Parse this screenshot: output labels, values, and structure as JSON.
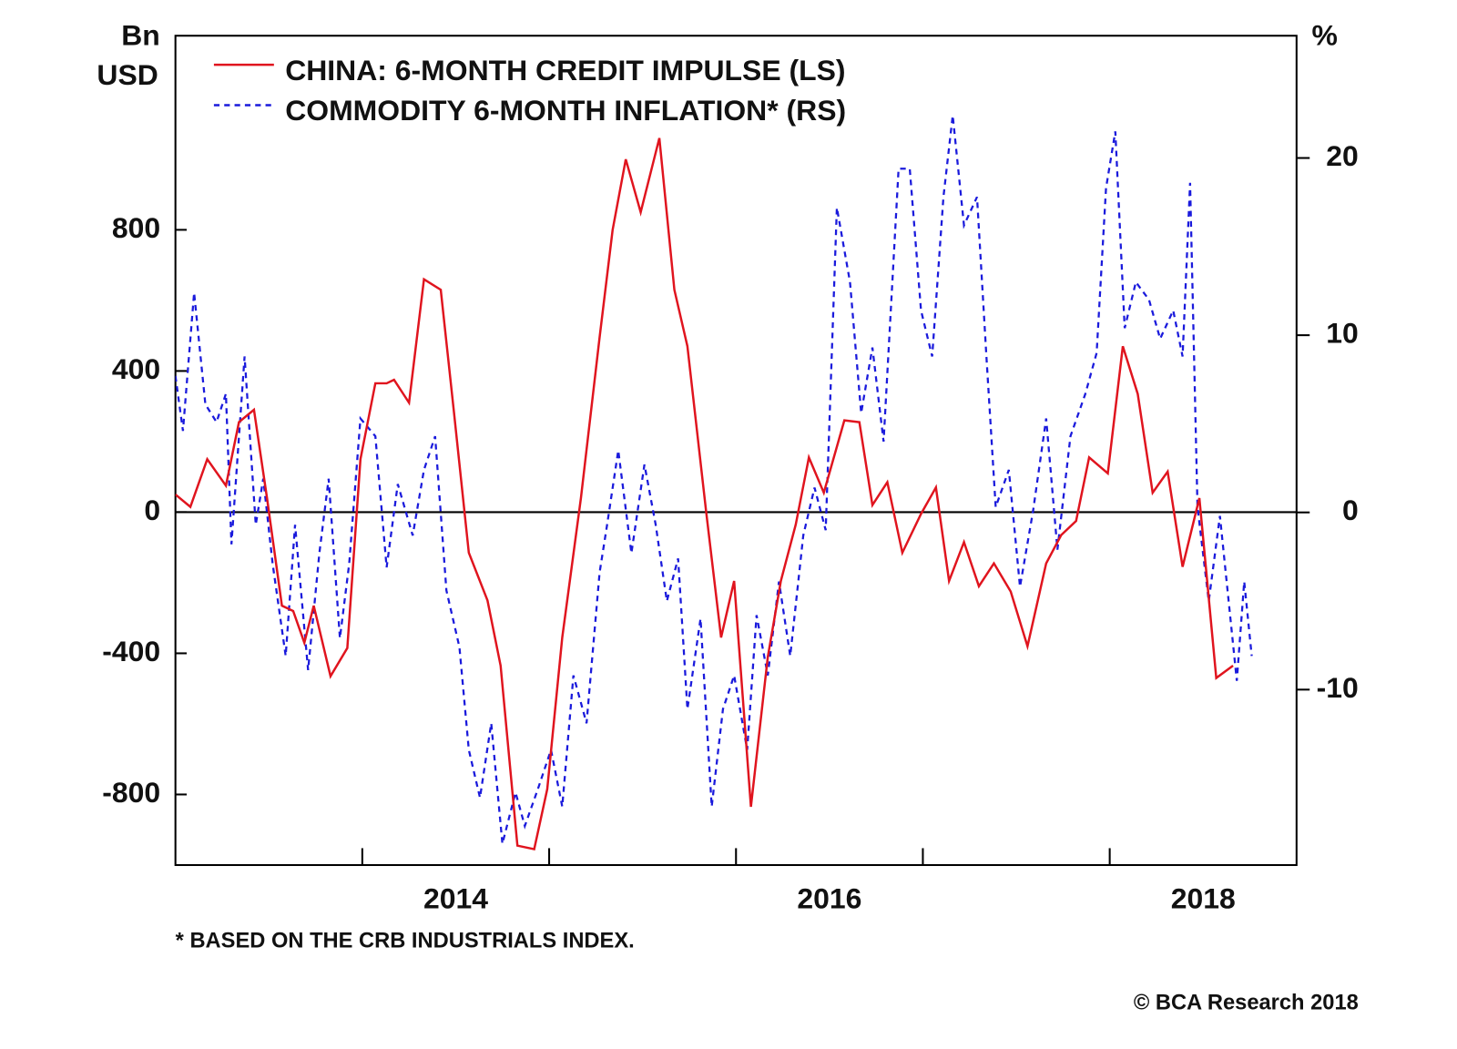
{
  "chart_data": {
    "type": "line",
    "y_label": [
      "Bn",
      "USD"
    ],
    "y2_label": "%",
    "footnote": "* BASED ON THE CRB INDUSTRIALS INDEX.",
    "source": "© BCA Research 2018",
    "xlim": [
      2013,
      2019
    ],
    "xticks": [
      {
        "value": 2014.5,
        "label": "2014"
      },
      {
        "value": 2016.5,
        "label": "2016"
      },
      {
        "value": 2018.5,
        "label": "2018"
      }
    ],
    "x_tick_marks": [
      2014,
      2015,
      2016,
      2017,
      2018
    ],
    "ylim": [
      -1000,
      1350
    ],
    "yticks": [
      -800,
      -400,
      0,
      400,
      800
    ],
    "y2lim": [
      -19.9,
      26.9
    ],
    "y2ticks": [
      -10,
      0,
      10,
      20
    ],
    "hlines": [
      0
    ],
    "legend": "upper left",
    "series": [
      {
        "name": "CHINA: 6-MONTH CREDIT IMPULSE (LS)",
        "color": "#e0141e",
        "style": "solid",
        "axis": "y",
        "x": [
          2013.0,
          2013.08,
          2013.17,
          2013.27,
          2013.34,
          2013.42,
          2013.49,
          2013.57,
          2013.63,
          2013.69,
          2013.74,
          2013.83,
          2013.92,
          2013.99,
          2014.07,
          2014.13,
          2014.17,
          2014.25,
          2014.33,
          2014.42,
          2014.49,
          2014.57,
          2014.67,
          2014.74,
          2014.83,
          2014.92,
          2014.99,
          2015.07,
          2015.17,
          2015.27,
          2015.34,
          2015.41,
          2015.49,
          2015.59,
          2015.67,
          2015.74,
          2015.84,
          2015.92,
          2015.99,
          2016.08,
          2016.17,
          2016.24,
          2016.32,
          2016.39,
          2016.47,
          2016.58,
          2016.66,
          2016.73,
          2016.81,
          2016.89,
          2016.99,
          2017.07,
          2017.14,
          2017.22,
          2017.3,
          2017.38,
          2017.47,
          2017.56,
          2017.66,
          2017.74,
          2017.82,
          2017.89,
          2017.99,
          2018.07,
          2018.15,
          2018.23,
          2018.31,
          2018.39,
          2018.48,
          2018.57,
          2018.66
        ],
        "values": [
          50,
          15,
          150,
          75,
          255,
          290,
          40,
          -265,
          -280,
          -370,
          -265,
          -465,
          -385,
          150,
          365,
          365,
          375,
          310,
          660,
          630,
          285,
          -115,
          -250,
          -435,
          -945,
          -955,
          -785,
          -355,
          40,
          495,
          800,
          1000,
          850,
          1060,
          630,
          470,
          3,
          -355,
          -195,
          -835,
          -410,
          -195,
          -35,
          155,
          55,
          260,
          255,
          20,
          85,
          -115,
          -5,
          70,
          -195,
          -85,
          -210,
          -145,
          -225,
          -380,
          -145,
          -65,
          -25,
          155,
          110,
          470,
          335,
          55,
          115,
          -155,
          40,
          -470,
          -435
        ]
      },
      {
        "name": "COMMODITY 6-MONTH INFLATION* (RS)",
        "color": "#1a1adc",
        "style": "dashed",
        "axis": "y2",
        "x": [
          2013.0,
          2013.04,
          2013.1,
          2013.16,
          2013.22,
          2013.27,
          2013.3,
          2013.37,
          2013.43,
          2013.47,
          2013.52,
          2013.59,
          2013.64,
          2013.71,
          2013.77,
          2013.82,
          2013.88,
          2013.93,
          2013.99,
          2014.07,
          2014.13,
          2014.19,
          2014.27,
          2014.33,
          2014.39,
          2014.45,
          2014.52,
          2014.57,
          2014.63,
          2014.69,
          2014.75,
          2014.82,
          2014.87,
          2014.94,
          2015.01,
          2015.07,
          2015.13,
          2015.2,
          2015.27,
          2015.31,
          2015.37,
          2015.44,
          2015.51,
          2015.57,
          2015.63,
          2015.69,
          2015.74,
          2015.81,
          2015.87,
          2015.93,
          2015.99,
          2016.06,
          2016.11,
          2016.17,
          2016.23,
          2016.29,
          2016.36,
          2016.42,
          2016.48,
          2016.54,
          2016.61,
          2016.67,
          2016.73,
          2016.79,
          2016.87,
          2016.93,
          2016.99,
          2017.05,
          2017.11,
          2017.16,
          2017.22,
          2017.29,
          2017.34,
          2017.39,
          2017.46,
          2017.52,
          2017.59,
          2017.66,
          2017.72,
          2017.79,
          2017.87,
          2017.93,
          2017.98,
          2018.03,
          2018.08,
          2018.14,
          2018.21,
          2018.27,
          2018.34,
          2018.39,
          2018.43,
          2018.47,
          2018.53,
          2018.59,
          2018.68,
          2018.72,
          2018.76
        ],
        "values": [
          7.7,
          4.6,
          12.4,
          6.1,
          5.1,
          6.7,
          -1.8,
          8.8,
          -0.7,
          1.9,
          -2.9,
          -8.1,
          -0.7,
          -8.9,
          -2.3,
          1.9,
          -7.1,
          -2.9,
          5.3,
          4.3,
          -3.1,
          1.6,
          -1.3,
          2.4,
          4.3,
          -4.4,
          -7.6,
          -13.4,
          -16.1,
          -11.9,
          -18.7,
          -15.8,
          -17.7,
          -15.6,
          -13.4,
          -16.6,
          -9.2,
          -11.9,
          -3.4,
          -0.7,
          3.5,
          -2.3,
          2.7,
          -0.7,
          -5.0,
          -2.6,
          -11.1,
          -6.0,
          -16.6,
          -11.1,
          -9.2,
          -13.4,
          -5.8,
          -9.2,
          -3.9,
          -8.1,
          -1.3,
          1.4,
          -1.0,
          17.2,
          13.0,
          5.6,
          9.3,
          4.0,
          19.4,
          19.4,
          11.4,
          8.8,
          17.8,
          22.4,
          16.2,
          17.8,
          8.8,
          0.3,
          2.4,
          -4.2,
          0.1,
          5.3,
          -2.1,
          4.3,
          6.7,
          9.0,
          18.3,
          21.5,
          10.4,
          13.0,
          12.0,
          9.8,
          11.4,
          8.8,
          18.6,
          0.3,
          -5.0,
          -0.2,
          -9.5,
          -3.9,
          -8.1
        ]
      }
    ]
  }
}
